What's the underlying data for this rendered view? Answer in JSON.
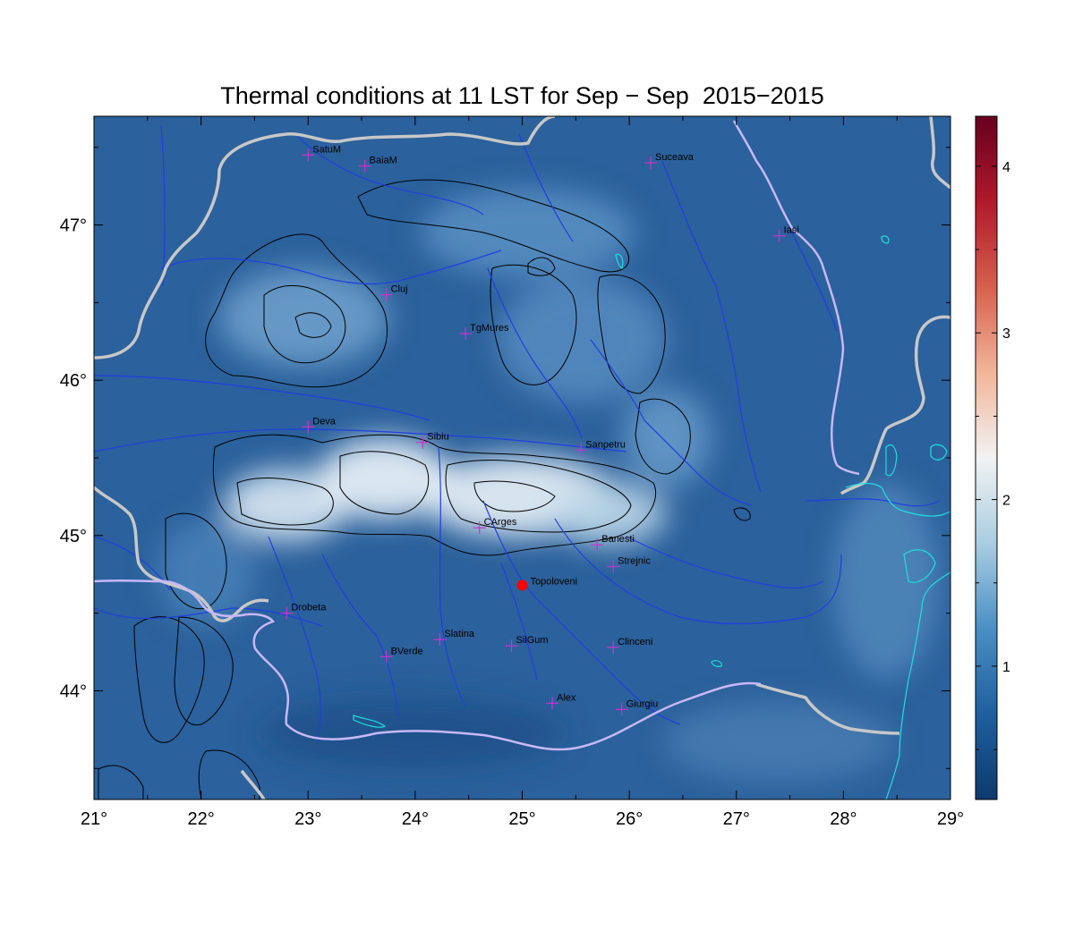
{
  "title": "Thermal conditions at 11 LST for Sep − Sep  2015−2015",
  "map": {
    "lon_range": [
      21,
      29
    ],
    "lat_range": [
      43.3,
      47.7
    ],
    "x_ticks": [
      {
        "value": 21,
        "label": "21°"
      },
      {
        "value": 22,
        "label": "22°"
      },
      {
        "value": 23,
        "label": "23°"
      },
      {
        "value": 24,
        "label": "24°"
      },
      {
        "value": 25,
        "label": "25°"
      },
      {
        "value": 26,
        "label": "26°"
      },
      {
        "value": 27,
        "label": "27°"
      },
      {
        "value": 28,
        "label": "28°"
      },
      {
        "value": 29,
        "label": "29°"
      }
    ],
    "y_ticks": [
      {
        "value": 44,
        "label": "44°"
      },
      {
        "value": 45,
        "label": "45°"
      },
      {
        "value": 46,
        "label": "46°"
      },
      {
        "value": 47,
        "label": "47°"
      }
    ],
    "stations": [
      {
        "name": "SatuM",
        "lon": 23.0,
        "lat": 47.45
      },
      {
        "name": "BaiaM",
        "lon": 23.53,
        "lat": 47.38
      },
      {
        "name": "Suceava",
        "lon": 26.2,
        "lat": 47.4
      },
      {
        "name": "Iasi",
        "lon": 27.4,
        "lat": 46.93
      },
      {
        "name": "Cluj",
        "lon": 23.73,
        "lat": 46.55
      },
      {
        "name": "TgMures",
        "lon": 24.47,
        "lat": 46.3
      },
      {
        "name": "Deva",
        "lon": 23.0,
        "lat": 45.7
      },
      {
        "name": "Sibiu",
        "lon": 24.07,
        "lat": 45.6
      },
      {
        "name": "Sanpetru",
        "lon": 25.55,
        "lat": 45.55
      },
      {
        "name": "CArges",
        "lon": 24.6,
        "lat": 45.05
      },
      {
        "name": "Banesti",
        "lon": 25.7,
        "lat": 44.94
      },
      {
        "name": "Strejnic",
        "lon": 25.85,
        "lat": 44.8
      },
      {
        "name": "Drobeta",
        "lon": 22.8,
        "lat": 44.5
      },
      {
        "name": "Slatina",
        "lon": 24.23,
        "lat": 44.33
      },
      {
        "name": "SilGum",
        "lon": 24.9,
        "lat": 44.29
      },
      {
        "name": "Clinceni",
        "lon": 25.85,
        "lat": 44.28
      },
      {
        "name": "BVerde",
        "lon": 23.73,
        "lat": 44.22
      },
      {
        "name": "Alex",
        "lon": 25.28,
        "lat": 43.92
      },
      {
        "name": "Giurgiu",
        "lon": 25.93,
        "lat": 43.88
      }
    ],
    "highlight_station": {
      "name": "Topoloveni",
      "lon": 25.0,
      "lat": 44.68,
      "color": "#ff0000"
    },
    "colors": {
      "station_marker": "#cc33cc",
      "rivers": "#1f3fe0",
      "border": "#c8c8c8",
      "inner_border": "#c8b8f8",
      "coast": "#22dddd",
      "contours": "#000000"
    }
  },
  "colorbar": {
    "min": 0.2,
    "max": 4.3,
    "ticks": [
      {
        "value": 1,
        "label": "1"
      },
      {
        "value": 2,
        "label": "2"
      },
      {
        "value": 3,
        "label": "3"
      },
      {
        "value": 4,
        "label": "4"
      }
    ],
    "colors": [
      "#0d3a6e",
      "#1f5f9e",
      "#4a8fc4",
      "#a9cde2",
      "#f2f2f2",
      "#f2b59a",
      "#d6604d",
      "#b2182b",
      "#67001f"
    ]
  }
}
